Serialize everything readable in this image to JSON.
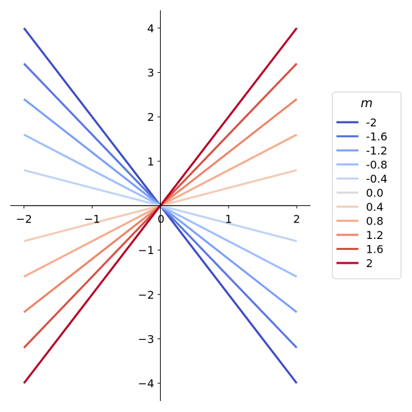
{
  "chart_data": {
    "type": "line",
    "xlim": [
      -2.2,
      2.2
    ],
    "ylim": [
      -4.4,
      4.4
    ],
    "x_ticks": [
      -2,
      -1,
      0,
      1,
      2
    ],
    "y_ticks": [
      -4,
      -3,
      -2,
      -1,
      1,
      2,
      3,
      4
    ],
    "x_tick_labels": [
      "−2",
      "−1",
      "0",
      "1",
      "2"
    ],
    "y_tick_labels": [
      "−4",
      "−3",
      "−2",
      "−1",
      "1",
      "2",
      "3",
      "4"
    ],
    "grid": false,
    "legend": {
      "title": "m",
      "position": "center-right"
    },
    "series": [
      {
        "name": "-2",
        "slope": -2,
        "x": [
          -2,
          2
        ],
        "y": [
          4,
          -4
        ],
        "color": "#3b4cc0"
      },
      {
        "name": "-1.6",
        "slope": -1.6,
        "x": [
          -2,
          2
        ],
        "y": [
          3.2,
          -3.2
        ],
        "color": "#5977e3"
      },
      {
        "name": "-1.2",
        "slope": -1.2,
        "x": [
          -2,
          2
        ],
        "y": [
          2.4,
          -2.4
        ],
        "color": "#7b9ff9"
      },
      {
        "name": "-0.8",
        "slope": -0.8,
        "x": [
          -2,
          2
        ],
        "y": [
          1.6,
          -1.6
        ],
        "color": "#9ebeff"
      },
      {
        "name": "-0.4",
        "slope": -0.4,
        "x": [
          -2,
          2
        ],
        "y": [
          0.8,
          -0.8
        ],
        "color": "#c0d4f5"
      },
      {
        "name": "0.0",
        "slope": 0,
        "x": [
          -2,
          2
        ],
        "y": [
          0,
          0
        ],
        "color": "#dddcdc"
      },
      {
        "name": "0.4",
        "slope": 0.4,
        "x": [
          -2,
          2
        ],
        "y": [
          -0.8,
          0.8
        ],
        "color": "#f2cbb7"
      },
      {
        "name": "0.8",
        "slope": 0.8,
        "x": [
          -2,
          2
        ],
        "y": [
          -1.6,
          1.6
        ],
        "color": "#f7ac8e"
      },
      {
        "name": "1.2",
        "slope": 1.2,
        "x": [
          -2,
          2
        ],
        "y": [
          -2.4,
          2.4
        ],
        "color": "#ee8468"
      },
      {
        "name": "1.6",
        "slope": 1.6,
        "x": [
          -2,
          2
        ],
        "y": [
          -3.2,
          3.2
        ],
        "color": "#d65244"
      },
      {
        "name": "2",
        "slope": 2,
        "x": [
          -2,
          2
        ],
        "y": [
          -4,
          4
        ],
        "color": "#b40426"
      }
    ]
  }
}
